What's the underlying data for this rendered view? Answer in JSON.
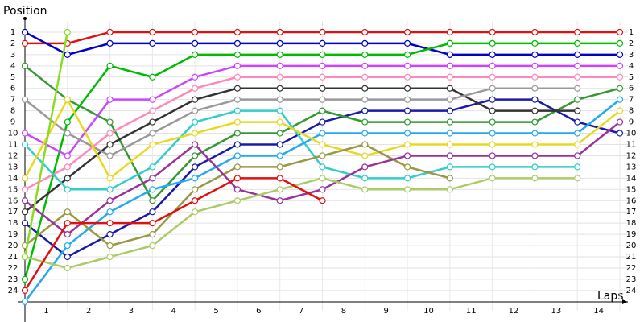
{
  "chart_data": {
    "type": "line",
    "y_label": "Position",
    "x_label": "Laps",
    "x": [
      0,
      1,
      2,
      3,
      4,
      5,
      6,
      7,
      8,
      9,
      10,
      11,
      12,
      13,
      14
    ],
    "xlim": [
      0,
      14
    ],
    "xticks": [
      1,
      2,
      3,
      4,
      5,
      6,
      7,
      8,
      9,
      10,
      11,
      12,
      13,
      14
    ],
    "ylim": [
      0,
      25.8
    ],
    "yticks": [
      1,
      2,
      3,
      4,
      5,
      6,
      7,
      8,
      9,
      10,
      11,
      12,
      13,
      14,
      15,
      16,
      17,
      18,
      19,
      20,
      21,
      22,
      23,
      24
    ],
    "y_reversed": true,
    "grid": true,
    "series": [
      {
        "color": "#e01010",
        "values": [
          2,
          2,
          1,
          1,
          1,
          1,
          1,
          1,
          1,
          1,
          1,
          1,
          1,
          1,
          1
        ]
      },
      {
        "color": "#0000cc",
        "values": [
          1,
          3,
          2,
          2,
          2,
          2,
          2,
          2,
          2,
          2,
          3,
          3,
          3,
          3,
          3
        ]
      },
      {
        "color": "#1a1aaa",
        "values": [
          18,
          21,
          19,
          17,
          13,
          11,
          11,
          9,
          8,
          8,
          8,
          7,
          7,
          9,
          10
        ]
      },
      {
        "color": "#00bb00",
        "values": [
          23,
          9,
          4,
          5,
          3,
          3,
          3,
          3,
          3,
          3,
          2,
          2,
          2,
          2,
          2
        ]
      },
      {
        "color": "#339933",
        "values": [
          4,
          7,
          9,
          16,
          12,
          10,
          10,
          8,
          9,
          9,
          9,
          9,
          9,
          7,
          6
        ]
      },
      {
        "color": "#cc44ff",
        "values": [
          10,
          12,
          7,
          7,
          5,
          4,
          4,
          4,
          4,
          4,
          4,
          4,
          4,
          4,
          4
        ]
      },
      {
        "color": "#ff88bb",
        "values": [
          15,
          13,
          10,
          8,
          6,
          5,
          5,
          5,
          5,
          5,
          5,
          5,
          5,
          5,
          5
        ]
      },
      {
        "color": "#333333",
        "values": [
          17,
          14,
          11,
          9,
          7,
          6,
          6,
          6,
          6,
          6,
          6,
          8,
          8,
          8,
          null
        ]
      },
      {
        "color": "#999999",
        "values": [
          7,
          10,
          12,
          10,
          8,
          7,
          7,
          7,
          7,
          7,
          7,
          6,
          6,
          6,
          null
        ]
      },
      {
        "color": "#33cccc",
        "values": [
          11,
          15,
          15,
          13,
          9,
          8,
          8,
          13,
          14,
          14,
          13,
          13,
          13,
          13,
          null
        ]
      },
      {
        "color": "#22aaee",
        "values": [
          25,
          20,
          17,
          15,
          14,
          12,
          12,
          10,
          10,
          10,
          10,
          10,
          10,
          10,
          7
        ]
      },
      {
        "color": "#e8d820",
        "values": [
          14,
          7,
          14,
          11,
          10,
          9,
          9,
          11,
          12,
          11,
          11,
          11,
          11,
          11,
          8
        ]
      },
      {
        "color": "#999944",
        "values": [
          20,
          17,
          20,
          19,
          15,
          13,
          13,
          12,
          11,
          13,
          14,
          null,
          null,
          null,
          null
        ]
      },
      {
        "color": "#993399",
        "values": [
          16,
          19,
          16,
          14,
          11,
          15,
          16,
          15,
          13,
          12,
          12,
          12,
          12,
          12,
          9
        ]
      },
      {
        "color": "#aacc66",
        "values": [
          21,
          22,
          21,
          20,
          17,
          16,
          15,
          14,
          15,
          15,
          15,
          14,
          14,
          14,
          null
        ]
      },
      {
        "color": "#e01010",
        "values": [
          24,
          18,
          18,
          18,
          16,
          14,
          14,
          16,
          null,
          null,
          null,
          null,
          null,
          null,
          null
        ]
      },
      {
        "color": "#88dd22",
        "values": [
          21,
          1,
          null,
          null,
          null,
          null,
          null,
          null,
          null,
          null,
          null,
          null,
          null,
          null,
          null
        ]
      }
    ]
  }
}
